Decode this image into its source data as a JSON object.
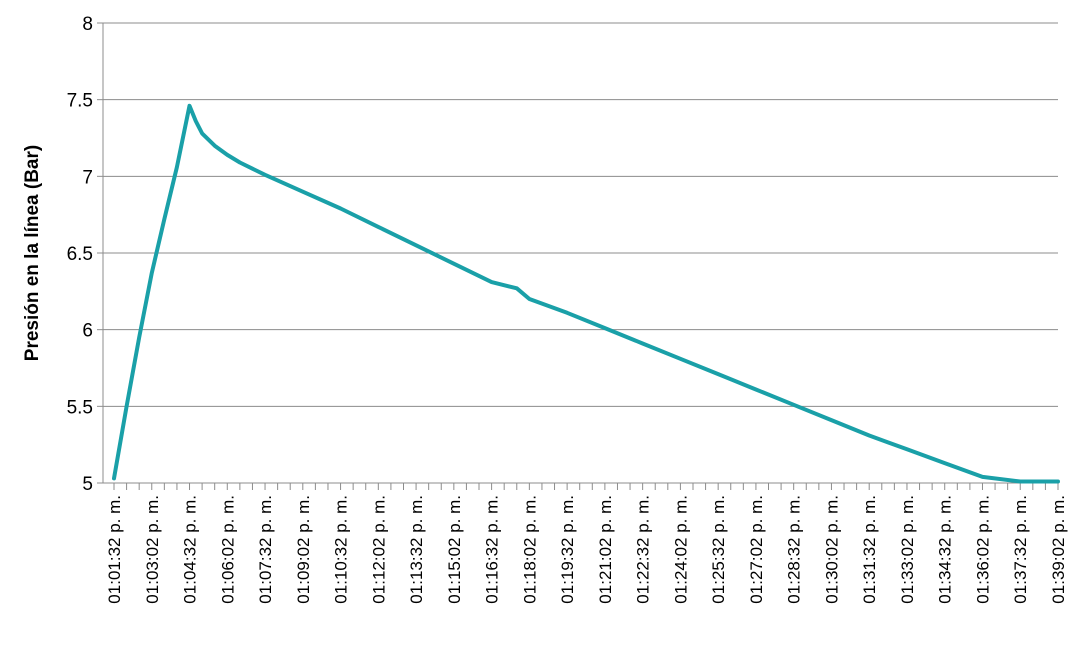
{
  "chart_data": {
    "type": "line",
    "title": "",
    "xlabel": "",
    "ylabel": "Presión en la línea (Bar)",
    "ylim": [
      5,
      8
    ],
    "y_ticks": [
      "5",
      "5.5",
      "6",
      "6.5",
      "7",
      "7.5",
      "8"
    ],
    "grid": true,
    "legend": "none",
    "x_tick_labels": [
      "01:01:32 p. m.",
      "01:03:02 p. m.",
      "01:04:32 p. m.",
      "01:06:02 p. m.",
      "01:07:32 p. m.",
      "01:09:02 p. m.",
      "01:10:32 p. m.",
      "01:12:02 p. m.",
      "01:13:32 p. m.",
      "01:15:02 p. m.",
      "01:16:32 p. m.",
      "01:18:02 p. m.",
      "01:19:32 p. m.",
      "01:21:02 p. m.",
      "01:22:32 p. m.",
      "01:24:02 p. m.",
      "01:25:32 p. m.",
      "01:27:02 p. m.",
      "01:28:32 p. m.",
      "01:30:02 p. m.",
      "01:31:32 p. m.",
      "01:33:02 p. m.",
      "01:34:32 p. m.",
      "01:36:02 p. m.",
      "01:37:32 p. m.",
      "01:39:02 p. m."
    ],
    "series": [
      {
        "color": "#1aa0a8",
        "x": [
          "01:01:32 p. m.",
          "01:02:02 p. m.",
          "01:02:32 p. m.",
          "01:03:02 p. m.",
          "01:03:32 p. m.",
          "01:04:02 p. m.",
          "01:04:32 p. m.",
          "01:04:47 p. m.",
          "01:05:02 p. m.",
          "01:05:32 p. m.",
          "01:06:02 p. m.",
          "01:06:32 p. m.",
          "01:07:02 p. m.",
          "01:07:32 p. m.",
          "01:09:02 p. m.",
          "01:10:32 p. m.",
          "01:12:02 p. m.",
          "01:13:32 p. m.",
          "01:15:02 p. m.",
          "01:16:32 p. m.",
          "01:17:32 p. m.",
          "01:18:02 p. m.",
          "01:19:32 p. m.",
          "01:21:02 p. m.",
          "01:22:32 p. m.",
          "01:24:02 p. m.",
          "01:25:32 p. m.",
          "01:27:02 p. m.",
          "01:28:32 p. m.",
          "01:30:02 p. m.",
          "01:31:32 p. m.",
          "01:33:02 p. m.",
          "01:34:32 p. m.",
          "01:36:02 p. m.",
          "01:37:32 p. m.",
          "01:39:02 p. m."
        ],
        "values": [
          5.03,
          5.5,
          5.95,
          6.37,
          6.72,
          7.06,
          7.46,
          7.36,
          7.28,
          7.2,
          7.14,
          7.09,
          7.05,
          7.01,
          6.9,
          6.79,
          6.67,
          6.55,
          6.43,
          6.31,
          6.27,
          6.2,
          6.11,
          6.01,
          5.91,
          5.81,
          5.71,
          5.61,
          5.51,
          5.41,
          5.31,
          5.22,
          5.13,
          5.04,
          5.01,
          5.01
        ]
      }
    ]
  }
}
